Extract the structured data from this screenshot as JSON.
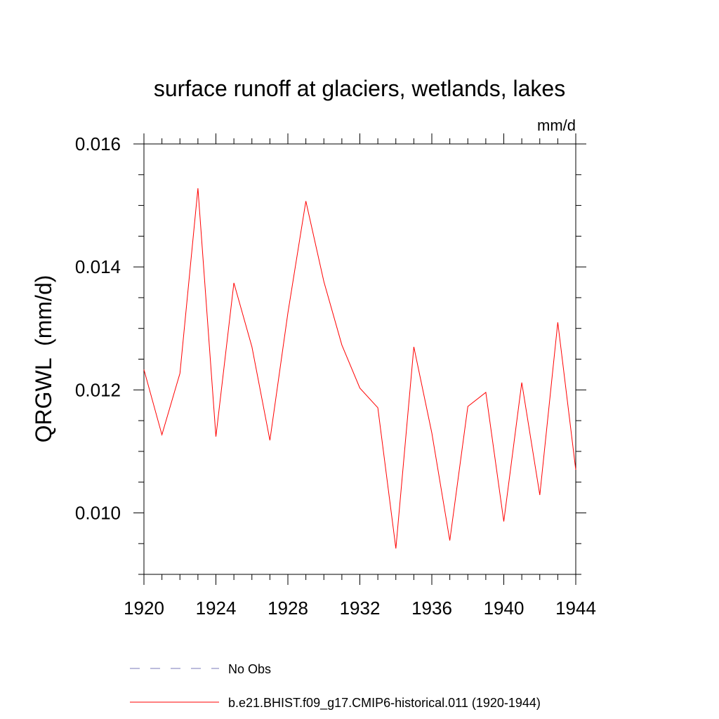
{
  "chart_data": {
    "type": "line",
    "title": "surface runoff at glaciers, wetlands, lakes",
    "units": "mm/d",
    "ylabel": "QRGWL  (mm/d)",
    "xlabel": "",
    "xlim": [
      1920,
      1944
    ],
    "ylim": [
      0.009,
      0.016
    ],
    "x_ticks": [
      1920,
      1924,
      1928,
      1932,
      1936,
      1940,
      1944
    ],
    "x_tick_labels": [
      "1920",
      "1924",
      "1928",
      "1932",
      "1936",
      "1940",
      "1944"
    ],
    "y_ticks": [
      0.01,
      0.012,
      0.014,
      0.016
    ],
    "y_tick_labels": [
      "0.010",
      "0.012",
      "0.014",
      "0.016"
    ],
    "grid": false,
    "legend_position": "bottom",
    "series": [
      {
        "name": "b.e21.BHIST.f09_g17.CMIP6-historical.011 (1920-1944)",
        "color": "#ff0000",
        "style": "solid",
        "x": [
          1920,
          1921,
          1922,
          1923,
          1924,
          1925,
          1926,
          1927,
          1928,
          1929,
          1930,
          1931,
          1932,
          1933,
          1934,
          1935,
          1936,
          1937,
          1938,
          1939,
          1940,
          1941,
          1942,
          1943,
          1944
        ],
        "values": [
          0.01233,
          0.01127,
          0.01227,
          0.01528,
          0.01124,
          0.01374,
          0.0127,
          0.01118,
          0.01325,
          0.01507,
          0.01376,
          0.01273,
          0.01203,
          0.01171,
          0.00942,
          0.0127,
          0.0113,
          0.00955,
          0.01173,
          0.01196,
          0.00986,
          0.01212,
          0.01029,
          0.0131,
          0.0107
        ]
      }
    ],
    "legend": [
      {
        "label": "No Obs",
        "color": "#7a7ab8",
        "style": "dashed"
      },
      {
        "label": "b.e21.BHIST.f09_g17.CMIP6-historical.011 (1920-1944)",
        "color": "#ff0000",
        "style": "solid"
      }
    ]
  }
}
